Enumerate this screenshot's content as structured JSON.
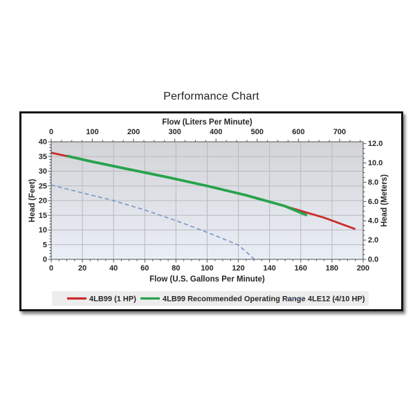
{
  "chart_data": {
    "type": "line",
    "title": "Performance Chart",
    "axes": {
      "bottom": {
        "label": "Flow (U.S. Gallons Per Minute)",
        "min": 0,
        "max": 200,
        "major_ticks": [
          0,
          20,
          40,
          60,
          80,
          100,
          120,
          140,
          160,
          180,
          200
        ],
        "minor_step": 5,
        "grid_step": 20
      },
      "top": {
        "label": "Flow (Liters Per Minute)",
        "min": 0,
        "max": 757.08,
        "major_ticks": [
          0,
          100,
          200,
          300,
          400,
          500,
          600,
          700
        ],
        "minor_step": 25
      },
      "left": {
        "label": "Head (Feet)",
        "min": 0,
        "max": 40,
        "major_ticks": [
          0,
          5,
          10,
          15,
          20,
          25,
          30,
          35,
          40
        ],
        "minor_step": 1,
        "grid_step": 5
      },
      "right": {
        "label": "Head (Meters)",
        "min": 0,
        "max": 12.192,
        "major_ticks": [
          0,
          2,
          4,
          6,
          8,
          10,
          12
        ],
        "minor_step": 0.5,
        "decimals": 1
      }
    },
    "grid": {
      "on": true,
      "color": "#b6b9bc"
    },
    "plot_background": {
      "gradient_top": "#d3d4d7",
      "gradient_bottom": "#eaeef7"
    },
    "series": [
      {
        "name": "4LB99 (1 HP)",
        "color": "#cb2b2b",
        "style": "solid",
        "width": 2.8,
        "points_gpm_ft": [
          [
            0,
            36.3
          ],
          [
            25,
            33.4
          ],
          [
            50,
            30.6
          ],
          [
            75,
            27.9
          ],
          [
            100,
            25.0
          ],
          [
            125,
            21.8
          ],
          [
            150,
            18.1
          ],
          [
            175,
            14.2
          ],
          [
            195,
            10.3
          ]
        ]
      },
      {
        "name": "4LB99 Recommended Operating Range",
        "color": "#28a24c",
        "style": "solid",
        "width": 3.8,
        "points_gpm_ft": [
          [
            10,
            35.2
          ],
          [
            25,
            33.4
          ],
          [
            50,
            30.6
          ],
          [
            75,
            27.9
          ],
          [
            100,
            25.0
          ],
          [
            125,
            21.8
          ],
          [
            150,
            18.1
          ],
          [
            164,
            15.0
          ]
        ]
      },
      {
        "name": "4LE12 (4/10 HP)",
        "color": "#7d98c8",
        "style": "dashed",
        "width": 1.7,
        "points_gpm_ft": [
          [
            0,
            25.3
          ],
          [
            20,
            22.6
          ],
          [
            40,
            20.0
          ],
          [
            60,
            16.8
          ],
          [
            80,
            13.2
          ],
          [
            100,
            9.2
          ],
          [
            120,
            4.9
          ],
          [
            130,
            0.2
          ]
        ]
      }
    ],
    "legend": {
      "position": "bottom",
      "background": "#ededed",
      "items": [
        {
          "label": "4LB99 (1 HP)",
          "color": "#cb2b2b",
          "style": "solid"
        },
        {
          "label": "4LB99 Recommended Operating Range",
          "color": "#28a24c",
          "style": "solid"
        },
        {
          "label": "4LE12 (4/10 HP)",
          "color": "#7d98c8",
          "style": "dashed"
        }
      ]
    }
  }
}
